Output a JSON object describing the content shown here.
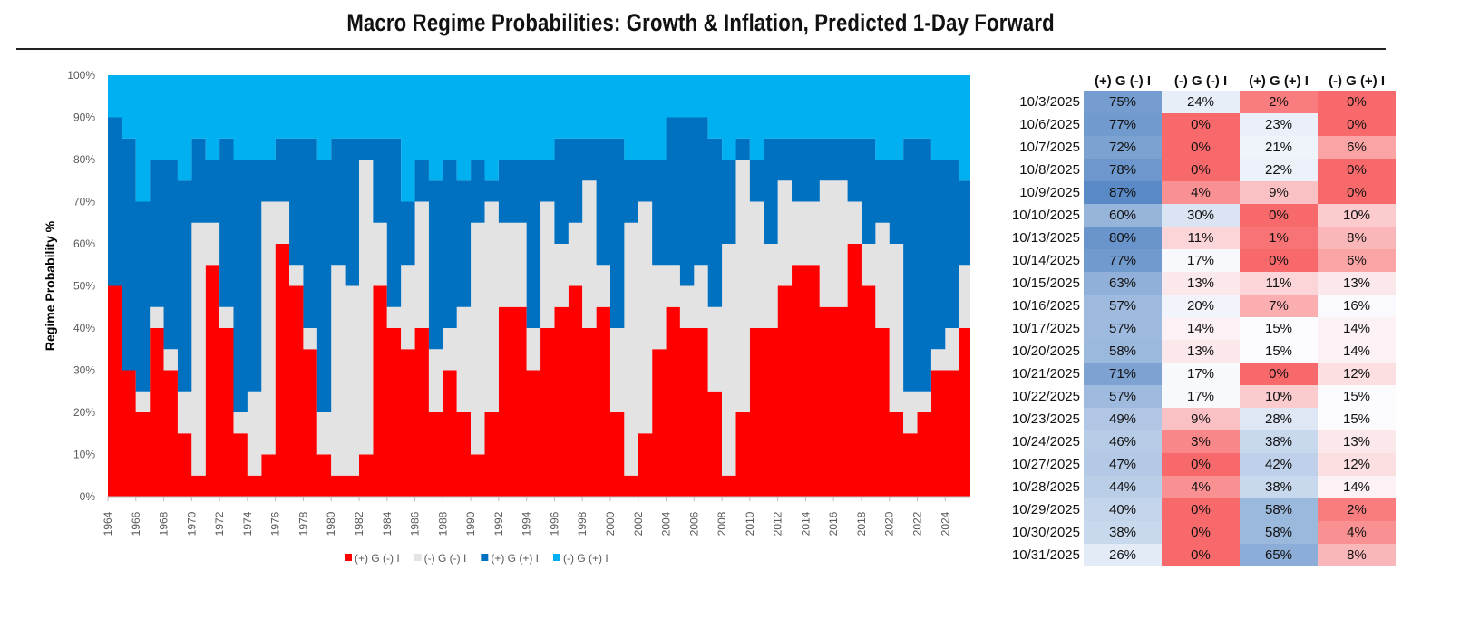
{
  "title": "Macro Regime Probabilities: Growth & Inflation, Predicted 1-Day Forward",
  "chart_data": {
    "type": "area",
    "stacked": true,
    "title": "",
    "xlabel": "",
    "ylabel": "Regime Probability %",
    "ylim": [
      0,
      100
    ],
    "y_ticks": [
      "0%",
      "10%",
      "20%",
      "30%",
      "40%",
      "50%",
      "60%",
      "70%",
      "80%",
      "90%",
      "100%"
    ],
    "x_ticks": [
      "1964",
      "1966",
      "1968",
      "1970",
      "1972",
      "1974",
      "1976",
      "1978",
      "1980",
      "1982",
      "1984",
      "1986",
      "1988",
      "1990",
      "1992",
      "1994",
      "1996",
      "1998",
      "2000",
      "2002",
      "2004",
      "2006",
      "2008",
      "2010",
      "2012",
      "2014",
      "2016",
      "2018",
      "2020",
      "2022",
      "2024"
    ],
    "legend_position": "bottom",
    "x": [
      1964,
      1965,
      1966,
      1967,
      1968,
      1969,
      1970,
      1971,
      1972,
      1973,
      1974,
      1975,
      1976,
      1977,
      1978,
      1979,
      1980,
      1981,
      1982,
      1983,
      1984,
      1985,
      1986,
      1987,
      1988,
      1989,
      1990,
      1991,
      1992,
      1993,
      1994,
      1995,
      1996,
      1997,
      1998,
      1999,
      2000,
      2001,
      2002,
      2003,
      2004,
      2005,
      2006,
      2007,
      2008,
      2009,
      2010,
      2011,
      2012,
      2013,
      2014,
      2015,
      2016,
      2017,
      2018,
      2019,
      2020,
      2021,
      2022,
      2023,
      2024,
      2025
    ],
    "series": [
      {
        "name": "(+) G (-) I",
        "color": "#FF0000",
        "values": [
          50,
          30,
          20,
          40,
          30,
          15,
          5,
          55,
          40,
          15,
          5,
          10,
          60,
          50,
          35,
          10,
          5,
          5,
          10,
          50,
          40,
          35,
          40,
          20,
          30,
          20,
          10,
          20,
          45,
          45,
          30,
          40,
          45,
          50,
          40,
          45,
          20,
          5,
          15,
          35,
          45,
          40,
          40,
          25,
          5,
          20,
          40,
          40,
          50,
          55,
          55,
          45,
          45,
          60,
          50,
          40,
          20,
          15,
          20,
          30,
          30,
          40
        ]
      },
      {
        "name": "(-) G (-) I",
        "color": "#E3E3E3",
        "values": [
          0,
          0,
          5,
          5,
          5,
          10,
          60,
          10,
          5,
          5,
          20,
          60,
          10,
          5,
          5,
          10,
          50,
          45,
          70,
          15,
          5,
          20,
          30,
          15,
          10,
          25,
          55,
          50,
          20,
          20,
          10,
          30,
          15,
          15,
          35,
          10,
          20,
          60,
          55,
          20,
          10,
          10,
          15,
          20,
          55,
          60,
          30,
          20,
          25,
          15,
          15,
          30,
          30,
          10,
          10,
          25,
          40,
          10,
          5,
          5,
          10,
          15
        ]
      },
      {
        "name": "(+) G (+) I",
        "color": "#0070C0",
        "values": [
          40,
          55,
          45,
          35,
          45,
          50,
          20,
          15,
          40,
          60,
          55,
          10,
          15,
          30,
          45,
          60,
          30,
          35,
          5,
          20,
          40,
          15,
          10,
          40,
          40,
          30,
          15,
          5,
          15,
          15,
          40,
          10,
          25,
          20,
          10,
          30,
          45,
          15,
          10,
          25,
          35,
          40,
          35,
          40,
          20,
          5,
          10,
          25,
          10,
          15,
          15,
          10,
          10,
          15,
          25,
          15,
          20,
          60,
          60,
          45,
          40,
          20
        ]
      },
      {
        "name": "(-) G (+) I",
        "color": "#00B0F0",
        "values": [
          10,
          15,
          30,
          20,
          20,
          25,
          15,
          20,
          15,
          20,
          20,
          20,
          15,
          15,
          15,
          20,
          15,
          15,
          15,
          15,
          15,
          30,
          20,
          25,
          20,
          25,
          20,
          25,
          20,
          20,
          20,
          20,
          15,
          15,
          15,
          15,
          15,
          20,
          20,
          20,
          10,
          10,
          10,
          15,
          20,
          15,
          20,
          15,
          15,
          15,
          15,
          15,
          15,
          15,
          15,
          20,
          20,
          15,
          15,
          20,
          20,
          25
        ]
      }
    ]
  },
  "table": {
    "headers": [
      "(+) G (-) I",
      "(-) G (-) I",
      "(+) G (+) I",
      "(-) G (+) I"
    ],
    "colors": {
      "low": "#F8696B",
      "mid": "#FCFCFF",
      "high": "#5A8AC6"
    },
    "rows": [
      {
        "date": "10/3/2025",
        "values": [
          "75%",
          "24%",
          "2%",
          "0%"
        ]
      },
      {
        "date": "10/6/2025",
        "values": [
          "77%",
          "0%",
          "23%",
          "0%"
        ]
      },
      {
        "date": "10/7/2025",
        "values": [
          "72%",
          "0%",
          "21%",
          "6%"
        ]
      },
      {
        "date": "10/8/2025",
        "values": [
          "78%",
          "0%",
          "22%",
          "0%"
        ]
      },
      {
        "date": "10/9/2025",
        "values": [
          "87%",
          "4%",
          "9%",
          "0%"
        ]
      },
      {
        "date": "10/10/2025",
        "values": [
          "60%",
          "30%",
          "0%",
          "10%"
        ]
      },
      {
        "date": "10/13/2025",
        "values": [
          "80%",
          "11%",
          "1%",
          "8%"
        ]
      },
      {
        "date": "10/14/2025",
        "values": [
          "77%",
          "17%",
          "0%",
          "6%"
        ]
      },
      {
        "date": "10/15/2025",
        "values": [
          "63%",
          "13%",
          "11%",
          "13%"
        ]
      },
      {
        "date": "10/16/2025",
        "values": [
          "57%",
          "20%",
          "7%",
          "16%"
        ]
      },
      {
        "date": "10/17/2025",
        "values": [
          "57%",
          "14%",
          "15%",
          "14%"
        ]
      },
      {
        "date": "10/20/2025",
        "values": [
          "58%",
          "13%",
          "15%",
          "14%"
        ]
      },
      {
        "date": "10/21/2025",
        "values": [
          "71%",
          "17%",
          "0%",
          "12%"
        ]
      },
      {
        "date": "10/22/2025",
        "values": [
          "57%",
          "17%",
          "10%",
          "15%"
        ]
      },
      {
        "date": "10/23/2025",
        "values": [
          "49%",
          "9%",
          "28%",
          "15%"
        ]
      },
      {
        "date": "10/24/2025",
        "values": [
          "46%",
          "3%",
          "38%",
          "13%"
        ]
      },
      {
        "date": "10/27/2025",
        "values": [
          "47%",
          "0%",
          "42%",
          "12%"
        ]
      },
      {
        "date": "10/28/2025",
        "values": [
          "44%",
          "4%",
          "38%",
          "14%"
        ]
      },
      {
        "date": "10/29/2025",
        "values": [
          "40%",
          "0%",
          "58%",
          "2%"
        ]
      },
      {
        "date": "10/30/2025",
        "values": [
          "38%",
          "0%",
          "58%",
          "4%"
        ]
      },
      {
        "date": "10/31/2025",
        "values": [
          "26%",
          "0%",
          "65%",
          "8%"
        ]
      }
    ]
  }
}
